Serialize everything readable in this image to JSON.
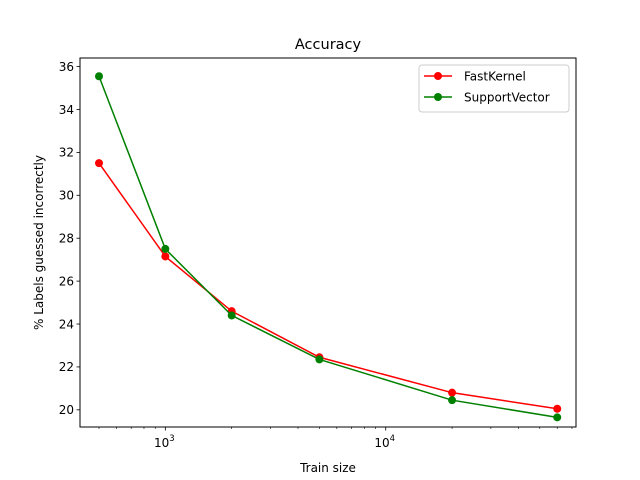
{
  "chart_data": {
    "type": "line",
    "title": "Accuracy",
    "xlabel": "Train size",
    "ylabel": "% Labels guessed incorrectly",
    "xscale": "log",
    "xlim": [
      410,
      73000
    ],
    "ylim": [
      19.2,
      36.4
    ],
    "yticks": [
      20,
      22,
      24,
      26,
      28,
      30,
      32,
      34,
      36
    ],
    "xticks": [
      {
        "value": 1000,
        "base": "10",
        "exp": "3"
      },
      {
        "value": 10000,
        "base": "10",
        "exp": "4"
      }
    ],
    "x": [
      500,
      1000,
      2000,
      5000,
      20000,
      60000
    ],
    "grid": false,
    "legend_position": "top-right",
    "series": [
      {
        "name": "FastKernel",
        "color": "#ff0000",
        "values": [
          31.5,
          27.15,
          24.6,
          22.45,
          20.8,
          20.05
        ]
      },
      {
        "name": "SupportVector",
        "color": "#008000",
        "values": [
          35.55,
          27.5,
          24.4,
          22.35,
          20.45,
          19.65
        ]
      }
    ]
  }
}
